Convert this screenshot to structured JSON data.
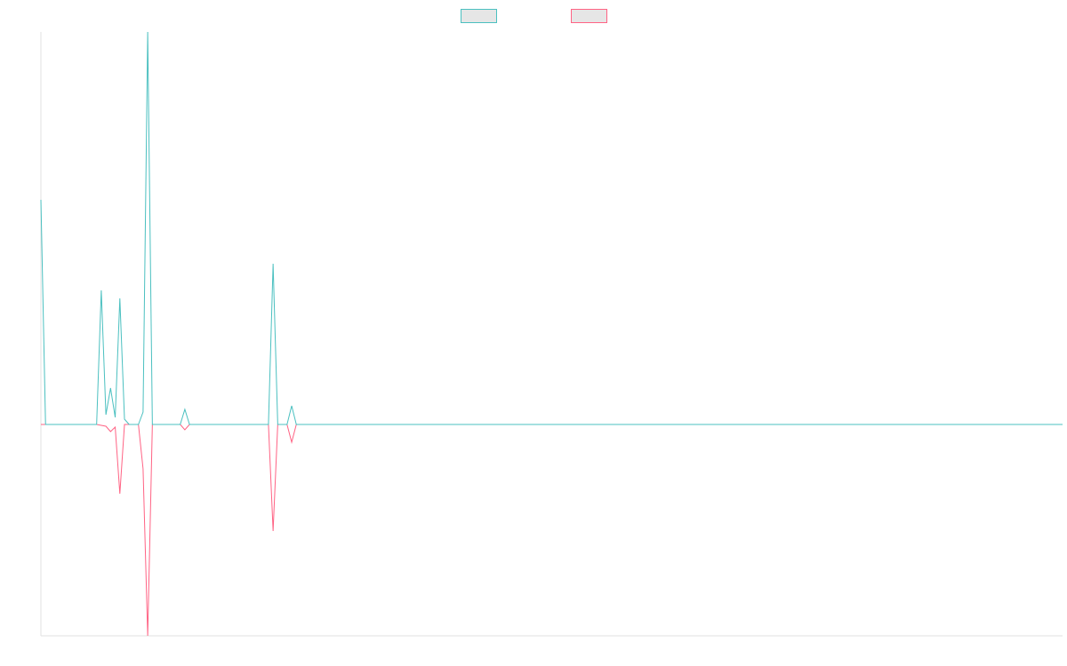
{
  "chart_data": {
    "type": "line",
    "categories": [
      null,
      null,
      null,
      null,
      null,
      null,
      null,
      null,
      null,
      null,
      null,
      null,
      null,
      null,
      null,
      null,
      null,
      null,
      null,
      null,
      null,
      null,
      null,
      null,
      null,
      null,
      null,
      null,
      null,
      null,
      null,
      null,
      null,
      null,
      null,
      null,
      null,
      null,
      null,
      null,
      null,
      null,
      null,
      null,
      null,
      null,
      null,
      null,
      null,
      null,
      null,
      null,
      null,
      null,
      null,
      null,
      null,
      null,
      null,
      null,
      null,
      null,
      null,
      null,
      null,
      null,
      null,
      null,
      null,
      null,
      null,
      null,
      null,
      null,
      null,
      null,
      null,
      null,
      null,
      null,
      null,
      null,
      null,
      null,
      null,
      null,
      null,
      null,
      null,
      null,
      null,
      null,
      null,
      null,
      null,
      null,
      null,
      null,
      null,
      null,
      null,
      null,
      null,
      null,
      null,
      null,
      null,
      null,
      null,
      null,
      null,
      null,
      null,
      null,
      null,
      null,
      null,
      null,
      null,
      null,
      null,
      null,
      null,
      null,
      null,
      null,
      null,
      null,
      null,
      null,
      null,
      null,
      null,
      null,
      null,
      null,
      null,
      null,
      null,
      null,
      null,
      null,
      null,
      null,
      null,
      null,
      null,
      null,
      null,
      null,
      null,
      null,
      null,
      null,
      null,
      null,
      null,
      null,
      null,
      null,
      null,
      null,
      null,
      null,
      null,
      null,
      null,
      null,
      null,
      null,
      null,
      null,
      null,
      null,
      null,
      null,
      null,
      null,
      null,
      null,
      null,
      null,
      null,
      null,
      null,
      null,
      null,
      null,
      null,
      null,
      null,
      null,
      null,
      null,
      null,
      null,
      null,
      null,
      null,
      null,
      null,
      null,
      null,
      null,
      null,
      null,
      null,
      null,
      null,
      null,
      null,
      null,
      null,
      null,
      null,
      null,
      null,
      null,
      null,
      null,
      null
    ],
    "series": [
      {
        "color": "#4bc0c0",
        "values": [
          253,
          0,
          0,
          0,
          0,
          0,
          0,
          0,
          0,
          0,
          0,
          0,
          0,
          151,
          11,
          41,
          8,
          142,
          6,
          0,
          0,
          0,
          14,
          442,
          0,
          0,
          0,
          0,
          0,
          0,
          0,
          17,
          0,
          0,
          0,
          0,
          0,
          0,
          0,
          0,
          0,
          0,
          0,
          0,
          0,
          0,
          0,
          0,
          0,
          0,
          181,
          0,
          0,
          0,
          21,
          0,
          0,
          0,
          0,
          0,
          0,
          0,
          0,
          0,
          0,
          0,
          0,
          0,
          0,
          0,
          0,
          0,
          0,
          0,
          0,
          0,
          0,
          0,
          0,
          0,
          0,
          0,
          0,
          0,
          0,
          0,
          0,
          0,
          0,
          0,
          0,
          0,
          0,
          0,
          0,
          0,
          0,
          0,
          0,
          0,
          0,
          0,
          0,
          0,
          0,
          0,
          0,
          0,
          0,
          0,
          0,
          0,
          0,
          0,
          0,
          0,
          0,
          0,
          0,
          0,
          0,
          0,
          0,
          0,
          0,
          0,
          0,
          0,
          0,
          0,
          0,
          0,
          0,
          0,
          0,
          0,
          0,
          0,
          0,
          0,
          0,
          0,
          0,
          0,
          0,
          0,
          0,
          0,
          0,
          0,
          0,
          0,
          0,
          0,
          0,
          0,
          0,
          0,
          0,
          0,
          0,
          0,
          0,
          0,
          0,
          0,
          0,
          0,
          0,
          0,
          0,
          0,
          0,
          0,
          0,
          0,
          0,
          0,
          0,
          0,
          0,
          0,
          0,
          0,
          0,
          0,
          0,
          0,
          0,
          0,
          0,
          0,
          0,
          0,
          0,
          0,
          0,
          0,
          0,
          0,
          0,
          0,
          0,
          0,
          0,
          0,
          0,
          0,
          0,
          0,
          0,
          0,
          0,
          0,
          0,
          0,
          0,
          0,
          0,
          0,
          0
        ]
      },
      {
        "color": "#ff6384",
        "values": [
          0,
          0,
          0,
          0,
          0,
          0,
          0,
          0,
          0,
          0,
          0,
          0,
          0,
          -1,
          -2,
          -8,
          -3,
          -78,
          0,
          0,
          0,
          0,
          -50,
          -238,
          0,
          0,
          0,
          0,
          0,
          0,
          0,
          -6,
          0,
          0,
          0,
          0,
          0,
          0,
          0,
          0,
          0,
          0,
          0,
          0,
          0,
          0,
          0,
          0,
          0,
          0,
          -120,
          0,
          0,
          0,
          -20,
          0,
          0,
          0,
          0,
          0,
          0,
          0,
          0,
          0,
          0,
          0,
          0,
          0,
          0,
          0,
          0,
          0,
          0,
          0,
          0,
          0,
          0,
          0,
          0,
          0,
          0,
          0,
          0,
          0,
          0,
          0,
          0,
          0,
          0,
          0,
          0,
          0,
          0,
          0,
          0,
          0,
          0,
          0,
          0,
          0,
          0,
          0,
          0,
          0,
          0,
          0,
          0,
          0,
          0,
          0,
          0,
          0,
          0,
          0,
          0,
          0,
          0,
          0,
          0,
          0,
          0,
          0,
          0,
          0,
          0,
          0,
          0,
          0,
          0,
          0,
          0,
          0,
          0,
          0,
          0,
          0,
          0,
          0,
          0,
          0,
          0,
          0,
          0,
          0,
          0,
          0,
          0,
          0,
          0,
          0,
          0,
          0,
          0,
          0,
          0,
          0,
          0,
          0,
          0,
          0,
          0,
          0,
          0,
          0,
          0,
          0,
          0,
          0,
          0,
          0,
          0,
          0,
          0,
          0,
          0,
          0,
          0,
          0,
          0,
          0,
          0,
          0,
          0,
          0,
          0,
          0,
          0,
          0,
          0,
          0,
          0,
          0,
          0,
          0,
          0,
          0,
          0,
          0,
          0,
          0,
          0,
          0,
          0,
          0,
          0,
          0,
          0,
          0,
          0,
          0,
          0,
          0,
          0,
          0,
          0,
          0,
          0,
          0,
          0,
          0,
          0
        ]
      }
    ],
    "ylim": [
      -238,
      442
    ],
    "legend": "top"
  }
}
